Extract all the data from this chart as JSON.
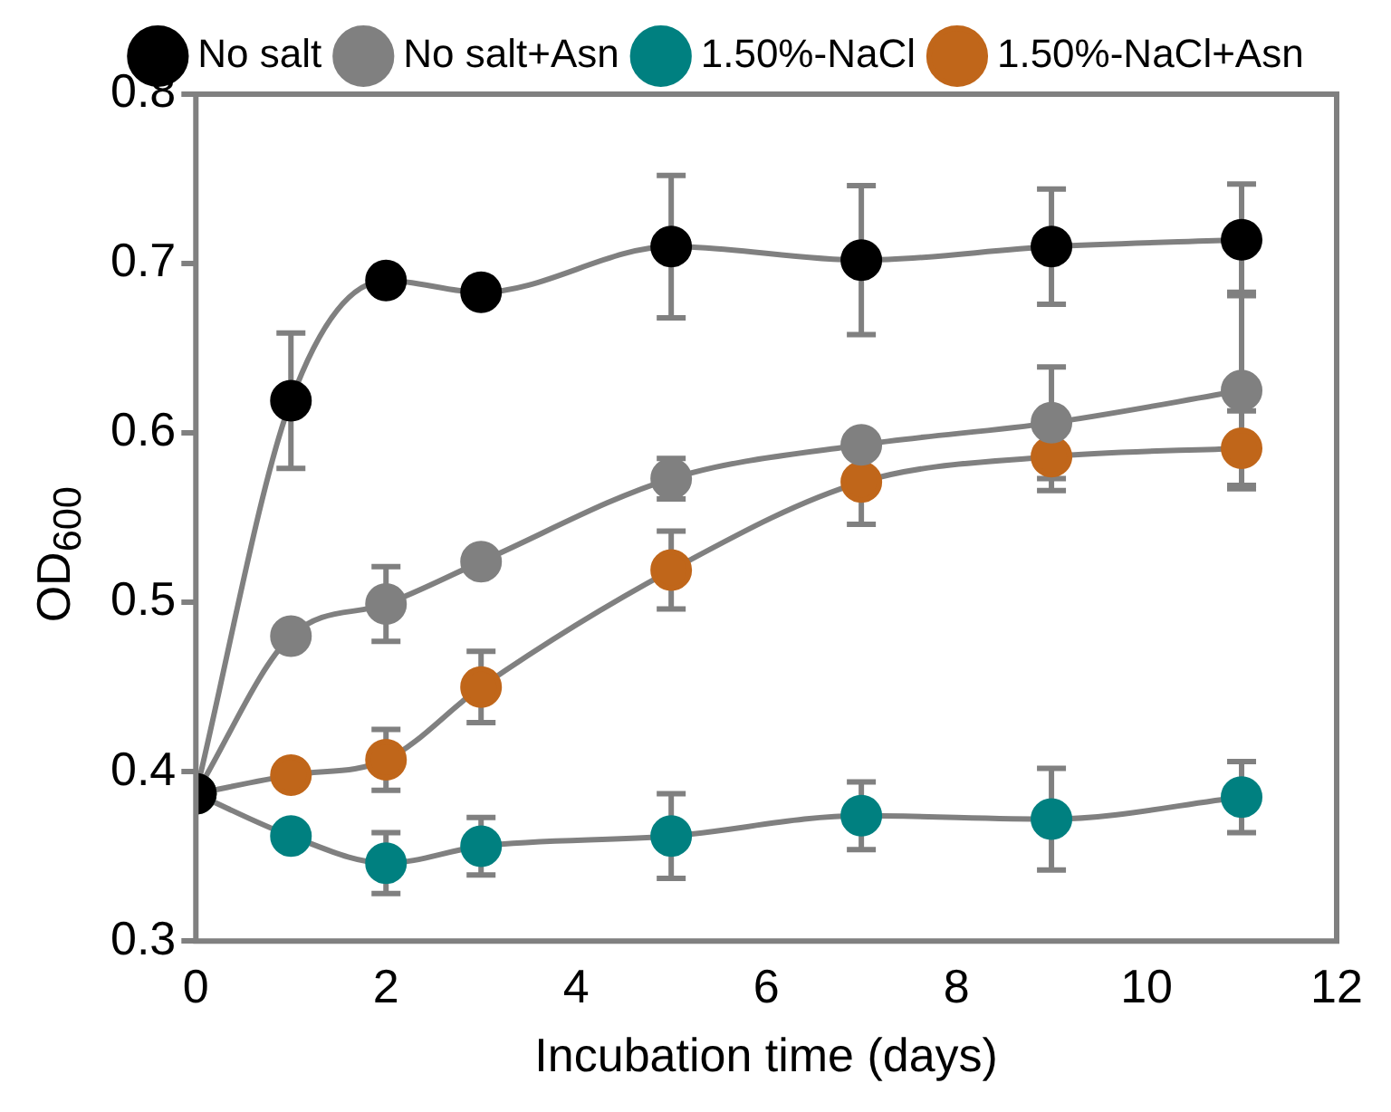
{
  "chart_data": {
    "type": "line",
    "xlabel": "Incubation time (days)",
    "ylabel": "OD$_{600}$",
    "x": [
      0,
      1,
      2,
      3,
      5,
      7,
      9,
      11
    ],
    "xlim": [
      0,
      12
    ],
    "xticks": [
      0,
      2,
      4,
      6,
      8,
      10,
      12
    ],
    "ylim": [
      0.3,
      0.8
    ],
    "yticks": [
      0.3,
      0.4,
      0.5,
      0.6,
      0.7,
      0.8
    ],
    "grid": false,
    "legend": "top",
    "marker": "circle",
    "line_style": "solid",
    "series": [
      {
        "name": "No salt",
        "color": "#000000",
        "values": [
          0.387,
          0.619,
          0.69,
          0.683,
          0.71,
          0.702,
          0.71,
          0.714
        ],
        "errors": [
          null,
          0.04,
          null,
          null,
          0.042,
          0.044,
          0.034,
          0.033
        ]
      },
      {
        "name": "No salt+Asn",
        "color": "#808080",
        "values": [
          0.387,
          0.48,
          0.499,
          0.524,
          0.573,
          0.593,
          0.606,
          0.625
        ],
        "errors": [
          null,
          null,
          0.022,
          null,
          0.012,
          null,
          0.033,
          0.058
        ]
      },
      {
        "name": "1.50%-NaCl",
        "color": "#008080",
        "values": [
          0.387,
          0.362,
          0.346,
          0.356,
          0.362,
          0.374,
          0.372,
          0.385
        ],
        "errors": [
          null,
          null,
          0.018,
          0.017,
          0.025,
          0.02,
          0.03,
          0.021
        ]
      },
      {
        "name": "1.50%-NaCl+Asn",
        "color": "#c0661a",
        "values": [
          0.387,
          0.398,
          0.407,
          0.45,
          0.519,
          0.571,
          0.586,
          0.591
        ],
        "errors": [
          null,
          null,
          0.018,
          0.021,
          0.023,
          0.025,
          0.02,
          0.022
        ]
      }
    ]
  }
}
